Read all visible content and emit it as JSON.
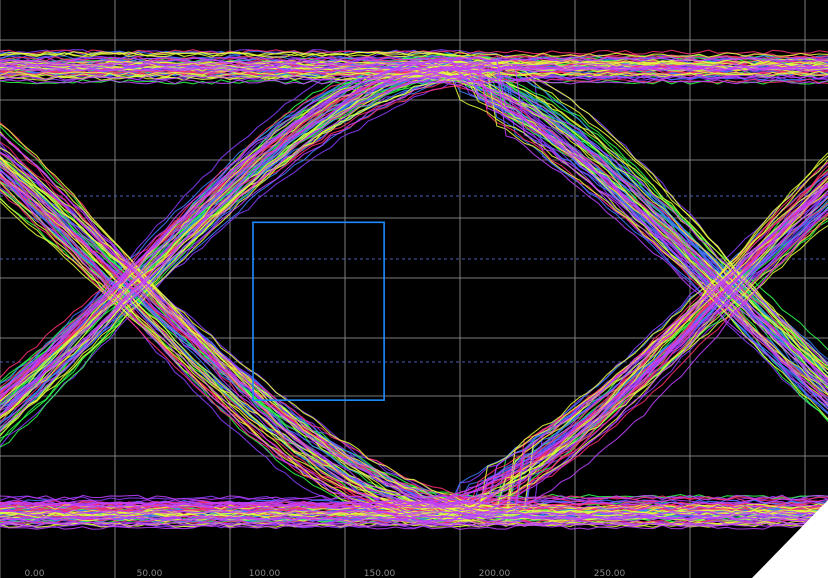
{
  "chart_data": {
    "type": "line",
    "subtype": "eye-diagram",
    "title": "",
    "xlabel": "",
    "ylabel": "",
    "x_ticks": [
      "0.00",
      "50.00",
      "100.00",
      "150.00",
      "200.00",
      "250.00"
    ],
    "xlim": [
      -15,
      345
    ],
    "ylim": [
      -1.3,
      1.3
    ],
    "grid": true,
    "background": "#000000",
    "grid_color": "#9a9a9a",
    "dashed_reference_color": "#5566cc",
    "mask": {
      "shape": "rectangle",
      "x": [
        95,
        152
      ],
      "y": [
        -0.5,
        0.3
      ],
      "color": "#1e8cff"
    },
    "unit_interval": [
      41,
      301
    ],
    "levels": {
      "high": 1.0,
      "low": -1.0,
      "crossing": 0.0
    },
    "trace_colors": [
      "#8a3cff",
      "#2dff4a",
      "#3b7bff",
      "#ff2e6e",
      "#e6ff3a",
      "#c040ff"
    ],
    "trace_count_per_color": 45
  }
}
